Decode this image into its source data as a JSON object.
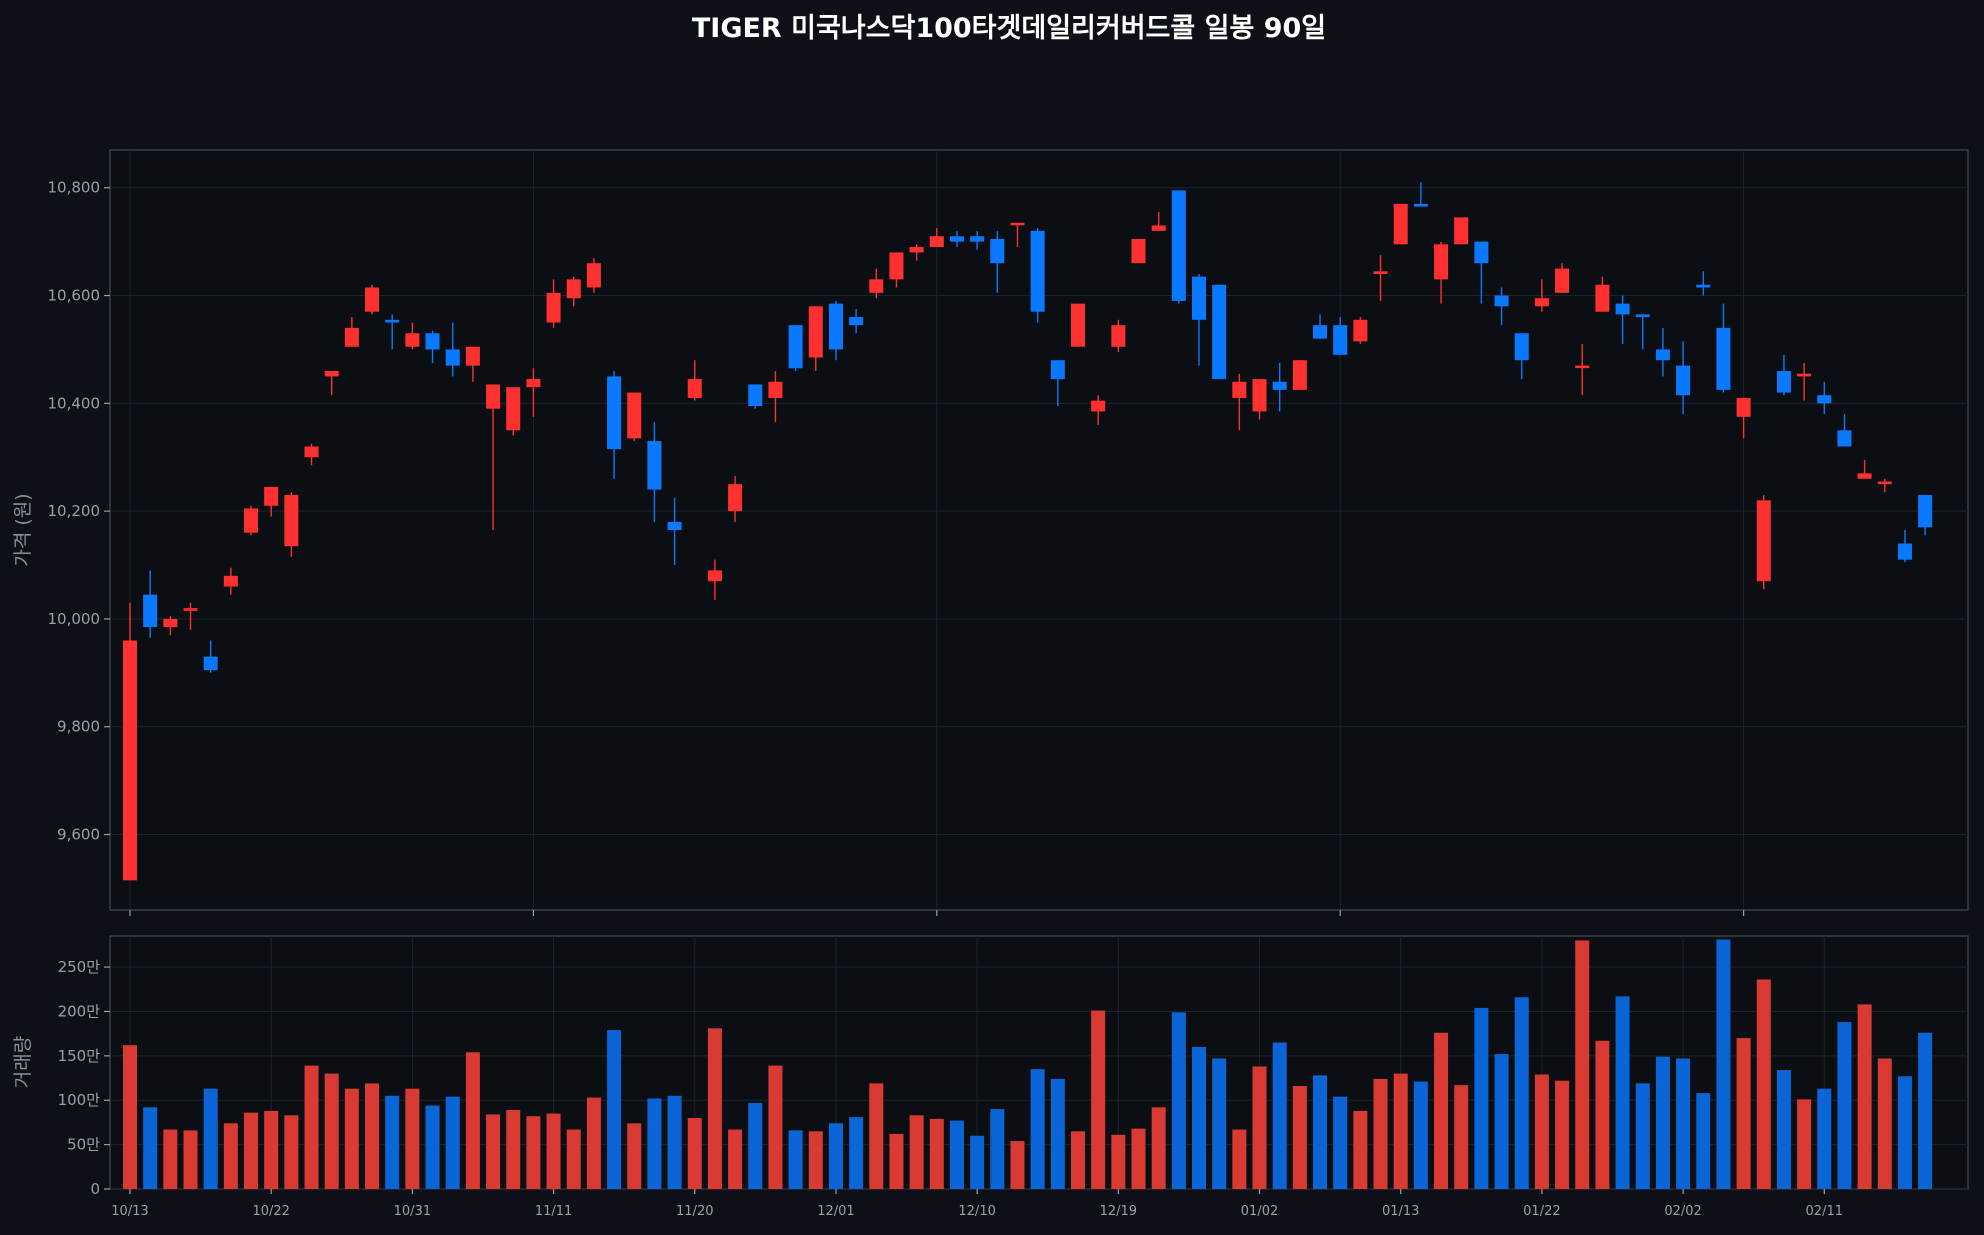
{
  "title": "TIGER 미국나스닥100타겟데일리커버드콜 일봉 90일",
  "colors": {
    "up": "#ff3030",
    "down": "#0a78ff",
    "vol_up": "#d93a34",
    "vol_down": "#0b65d6",
    "background": "#0d1017"
  },
  "chart_data": [
    {
      "type": "candlestick",
      "ylabel": "가격 (원)",
      "ylim": [
        9460,
        10870
      ],
      "yticks": [
        9600,
        9800,
        10000,
        10200,
        10400,
        10600,
        10800
      ],
      "ytick_labels": [
        "9,600",
        "9,800",
        "10,000",
        "10,200",
        "10,400",
        "10,600",
        "10,800"
      ],
      "grid": true,
      "ohlc": [
        [
          9515,
          10030,
          9515,
          9960
        ],
        [
          10045,
          10090,
          9965,
          9985
        ],
        [
          9985,
          10005,
          9970,
          10000
        ],
        [
          10015,
          10030,
          9980,
          10020
        ],
        [
          9930,
          9960,
          9900,
          9905
        ],
        [
          10060,
          10095,
          10045,
          10080
        ],
        [
          10160,
          10210,
          10155,
          10205
        ],
        [
          10210,
          10245,
          10190,
          10245
        ],
        [
          10135,
          10235,
          10115,
          10230
        ],
        [
          10300,
          10325,
          10285,
          10320
        ],
        [
          10450,
          10460,
          10415,
          10460
        ],
        [
          10505,
          10560,
          10505,
          10540
        ],
        [
          10570,
          10620,
          10565,
          10615
        ],
        [
          10555,
          10565,
          10500,
          10550
        ],
        [
          10505,
          10550,
          10500,
          10530
        ],
        [
          10530,
          10535,
          10475,
          10500
        ],
        [
          10500,
          10550,
          10450,
          10470
        ],
        [
          10470,
          10505,
          10440,
          10505
        ],
        [
          10390,
          10435,
          10165,
          10435
        ],
        [
          10350,
          10430,
          10340,
          10430
        ],
        [
          10430,
          10465,
          10375,
          10445
        ],
        [
          10550,
          10630,
          10540,
          10605
        ],
        [
          10595,
          10635,
          10580,
          10630
        ],
        [
          10615,
          10670,
          10605,
          10660
        ],
        [
          10450,
          10460,
          10260,
          10315
        ],
        [
          10335,
          10420,
          10330,
          10420
        ],
        [
          10330,
          10365,
          10180,
          10240
        ],
        [
          10180,
          10225,
          10100,
          10165
        ],
        [
          10410,
          10480,
          10405,
          10445
        ],
        [
          10070,
          10110,
          10035,
          10090
        ],
        [
          10200,
          10265,
          10180,
          10250
        ],
        [
          10435,
          10435,
          10390,
          10395
        ],
        [
          10410,
          10460,
          10365,
          10440
        ],
        [
          10545,
          10545,
          10460,
          10465
        ],
        [
          10485,
          10580,
          10460,
          10580
        ],
        [
          10585,
          10590,
          10480,
          10500
        ],
        [
          10560,
          10575,
          10530,
          10545
        ],
        [
          10605,
          10650,
          10595,
          10630
        ],
        [
          10630,
          10680,
          10615,
          10680
        ],
        [
          10680,
          10695,
          10665,
          10690
        ],
        [
          10690,
          10725,
          10690,
          10710
        ],
        [
          10710,
          10720,
          10690,
          10700
        ],
        [
          10710,
          10720,
          10685,
          10700
        ],
        [
          10705,
          10720,
          10605,
          10660
        ],
        [
          10735,
          10735,
          10690,
          10735
        ],
        [
          10720,
          10725,
          10550,
          10570
        ],
        [
          10480,
          10480,
          10395,
          10445
        ],
        [
          10505,
          10585,
          10505,
          10585
        ],
        [
          10385,
          10415,
          10360,
          10405
        ],
        [
          10505,
          10555,
          10495,
          10545
        ],
        [
          10660,
          10705,
          10660,
          10705
        ],
        [
          10720,
          10755,
          10720,
          10730
        ],
        [
          10795,
          10795,
          10585,
          10590
        ],
        [
          10635,
          10640,
          10470,
          10555
        ],
        [
          10620,
          10620,
          10445,
          10445
        ],
        [
          10410,
          10455,
          10350,
          10440
        ],
        [
          10385,
          10445,
          10370,
          10445
        ],
        [
          10440,
          10475,
          10385,
          10425
        ],
        [
          10425,
          10480,
          10425,
          10480
        ],
        [
          10545,
          10565,
          10520,
          10520
        ],
        [
          10545,
          10560,
          10490,
          10490
        ],
        [
          10515,
          10560,
          10510,
          10555
        ],
        [
          10640,
          10675,
          10590,
          10645
        ],
        [
          10695,
          10770,
          10695,
          10770
        ],
        [
          10770,
          10810,
          10765,
          10765
        ],
        [
          10630,
          10700,
          10585,
          10695
        ],
        [
          10695,
          10740,
          10695,
          10745
        ],
        [
          10700,
          10700,
          10585,
          10660
        ],
        [
          10600,
          10615,
          10545,
          10580
        ],
        [
          10530,
          10530,
          10445,
          10480
        ],
        [
          10580,
          10630,
          10570,
          10595
        ],
        [
          10605,
          10660,
          10605,
          10650
        ],
        [
          10470,
          10510,
          10415,
          10470
        ],
        [
          10570,
          10635,
          10570,
          10620
        ],
        [
          10585,
          10600,
          10510,
          10565
        ],
        [
          10565,
          10565,
          10500,
          10560
        ],
        [
          10500,
          10540,
          10450,
          10480
        ],
        [
          10470,
          10515,
          10380,
          10415
        ],
        [
          10620,
          10645,
          10600,
          10615
        ],
        [
          10540,
          10585,
          10420,
          10425
        ],
        [
          10375,
          10410,
          10335,
          10410
        ],
        [
          10070,
          10230,
          10055,
          10220
        ],
        [
          10460,
          10490,
          10415,
          10420
        ],
        [
          10450,
          10475,
          10405,
          10455
        ],
        [
          10415,
          10440,
          10380,
          10400
        ],
        [
          10350,
          10380,
          10320,
          10320
        ],
        [
          10260,
          10295,
          10260,
          10270
        ],
        [
          10250,
          10260,
          10235,
          10255
        ],
        [
          10140,
          10165,
          10105,
          10110
        ],
        [
          10230,
          10230,
          10155,
          10170
        ]
      ]
    },
    {
      "type": "bar",
      "ylabel": "거래량",
      "ylim": [
        0,
        2850000
      ],
      "yticks": [
        0,
        500000,
        1000000,
        1500000,
        2000000,
        2500000
      ],
      "ytick_labels": [
        "0",
        "50만",
        "100만",
        "150만",
        "200만",
        "250만"
      ],
      "x_tick_labels": [
        "10/13",
        "10/22",
        "10/31",
        "11/11",
        "11/20",
        "12/01",
        "12/10",
        "12/19",
        "01/02",
        "01/13",
        "01/22",
        "02/02",
        "02/11"
      ],
      "volume": [
        1620000,
        920000,
        670000,
        660000,
        1130000,
        740000,
        860000,
        880000,
        830000,
        1390000,
        1300000,
        1130000,
        1190000,
        1050000,
        1130000,
        940000,
        1040000,
        1540000,
        840000,
        890000,
        820000,
        850000,
        670000,
        1030000,
        1790000,
        740000,
        1020000,
        1050000,
        800000,
        1810000,
        670000,
        970000,
        1390000,
        660000,
        650000,
        740000,
        810000,
        1190000,
        620000,
        830000,
        790000,
        770000,
        600000,
        900000,
        540000,
        1350000,
        1240000,
        650000,
        2010000,
        610000,
        680000,
        920000,
        1990000,
        1600000,
        1470000,
        670000,
        1380000,
        1650000,
        1160000,
        1280000,
        1040000,
        880000,
        1240000,
        1300000,
        1210000,
        1760000,
        1170000,
        2040000,
        1520000,
        2160000,
        1290000,
        1220000,
        2800000,
        1670000,
        2170000,
        1190000,
        1490000,
        1470000,
        1080000,
        2810000,
        1700000,
        2360000,
        1340000,
        1010000,
        1130000,
        1880000,
        2080000,
        1470000,
        1270000,
        1760000
      ],
      "grid": true
    }
  ]
}
